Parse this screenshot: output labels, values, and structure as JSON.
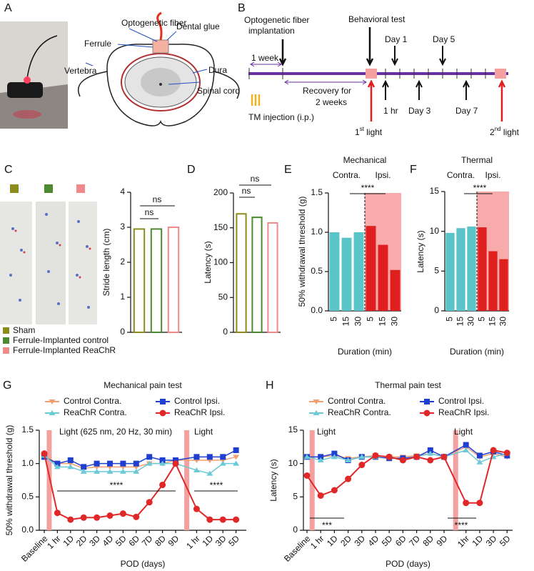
{
  "panel_labels": [
    "A",
    "B",
    "C",
    "D",
    "E",
    "F",
    "G",
    "H"
  ],
  "diagram": {
    "labels": [
      "Optogenetic fiber",
      "Ferrule",
      "Dental glue",
      "Vertebra",
      "Dura",
      "Spinal cord"
    ]
  },
  "timeline": {
    "implantation": [
      "Optogenetic fiber",
      "implantation"
    ],
    "behavioral_test": "Behavioral test",
    "week": "1 week",
    "recovery": [
      "Recovery for",
      "2 weeks"
    ],
    "injection": "TM injection (i.p.)",
    "days_above": [
      "Day 1",
      "Day 5"
    ],
    "days_below": [
      "1 hr",
      "Day 3",
      "Day 7"
    ],
    "first_light": [
      "1",
      "st",
      " light"
    ],
    "second_light": [
      "2",
      "nd",
      " light"
    ]
  },
  "chart_data": [
    {
      "type": "bar",
      "y_label": "Stride length (cm)",
      "categories": [
        "Sham",
        "Ferrule-Implanted control",
        "Ferrule-Implanted ReaChR"
      ],
      "values": [
        2.95,
        2.95,
        3.0
      ],
      "colors": [
        "#8c8c1c",
        "#4b8a2e",
        "#f08a8a"
      ],
      "ylim": [
        0,
        4
      ],
      "yticks": [
        0,
        1,
        2,
        3,
        4
      ],
      "annotations": [
        "ns",
        "ns"
      ]
    },
    {
      "type": "bar",
      "y_label": "Latency (s)",
      "values": [
        170,
        165,
        157
      ],
      "colors": [
        "#8c8c1c",
        "#4b8a2e",
        "#f08a8a"
      ],
      "ylim": [
        0,
        200
      ],
      "yticks": [
        0,
        50,
        100,
        150,
        200
      ],
      "annotations": [
        "ns",
        "ns"
      ]
    },
    {
      "type": "bar",
      "title": "Mechanical",
      "groups": [
        "Contra.",
        "Ipsi."
      ],
      "y_label": "50% withdrawal threshold (g)",
      "x_label": "Duration (min)",
      "categories": [
        "5",
        "15",
        "30",
        "5",
        "15",
        "30"
      ],
      "values": [
        1.0,
        0.93,
        1.0,
        1.08,
        0.84,
        0.52
      ],
      "colors": [
        "#5bc4c9",
        "#5bc4c9",
        "#5bc4c9",
        "#e0201f",
        "#e0201f",
        "#e0201f"
      ],
      "ylim": [
        0,
        1.5
      ],
      "yticks": [
        {
          "value": 0,
          "label": "0.0"
        },
        0.5,
        {
          "value": 1,
          "label": "1.0"
        },
        1.5
      ],
      "annotations": [
        "****"
      ]
    },
    {
      "type": "bar",
      "title": "Thermal",
      "groups": [
        "Contra.",
        "Ipsi."
      ],
      "y_label": "Latency (s)",
      "x_label": "Duration (min)",
      "categories": [
        "5",
        "15",
        "30",
        "5",
        "15",
        "30"
      ],
      "values": [
        9.8,
        10.4,
        10.6,
        10.5,
        7.5,
        6.5
      ],
      "colors": [
        "#5bc4c9",
        "#5bc4c9",
        "#5bc4c9",
        "#e0201f",
        "#e0201f",
        "#e0201f"
      ],
      "ylim": [
        0,
        15
      ],
      "yticks": [
        0,
        5,
        10,
        15
      ],
      "annotations": [
        "****"
      ]
    },
    {
      "type": "line",
      "title": "Mechanical pain test",
      "y_label": "50% withdrawal threshold (g)",
      "x_label": "POD (days)",
      "categories": [
        "Baseline",
        "1 hr",
        "1D",
        "2D",
        "3D",
        "4D",
        "5D",
        "6D",
        "7D",
        "8D",
        "9D",
        "1 hr",
        "1D",
        "3D",
        "5D"
      ],
      "series": [
        {
          "name": "Control Contra.",
          "color": "#f0a070",
          "values": [
            1.13,
            1.0,
            1.0,
            0.93,
            0.95,
            0.95,
            0.95,
            0.95,
            1.0,
            1.0,
            1.05,
            1.05,
            1.05,
            1.05,
            1.1
          ]
        },
        {
          "name": "Control Ipsi.",
          "color": "#1f3fd0",
          "values": [
            1.1,
            1.0,
            1.05,
            0.95,
            1.0,
            1.0,
            1.0,
            1.0,
            1.1,
            1.05,
            1.05,
            1.1,
            1.1,
            1.1,
            1.2
          ]
        },
        {
          "name": "ReaChR Contra.",
          "color": "#6cc9d6",
          "values": [
            1.12,
            0.95,
            0.95,
            0.88,
            0.88,
            0.88,
            0.88,
            0.88,
            1.0,
            1.0,
            1.0,
            0.9,
            0.85,
            1.0,
            1.0
          ]
        },
        {
          "name": "ReaChR Ipsi.",
          "color": "#e02828",
          "values": [
            1.15,
            0.26,
            0.16,
            0.19,
            0.19,
            0.22,
            0.25,
            0.2,
            0.42,
            0.68,
            1.0,
            0.32,
            0.16,
            0.16,
            0.16
          ]
        }
      ],
      "ylim": [
        0,
        1.5
      ],
      "yticks": [
        {
          "value": 0,
          "label": "0.0"
        },
        0.5,
        {
          "value": 1,
          "label": "1.0"
        },
        1.5
      ],
      "annotations": [
        "Light (625 nm, 20 Hz, 30 min)",
        "Light",
        "****",
        "****"
      ]
    },
    {
      "type": "line",
      "title": "Thermal pain test",
      "y_label": "Latency (s)",
      "x_label": "POD (days)",
      "categories": [
        "Baseline",
        "1 hr",
        "1D",
        "2D",
        "3D",
        "4D",
        "5D",
        "6D",
        "7D",
        "8D",
        "9D",
        "1hr",
        "1D",
        "3D",
        "5D"
      ],
      "series": [
        {
          "name": "Control Contra.",
          "color": "#f0a070",
          "values": [
            11,
            11,
            11.2,
            10.8,
            11,
            11.2,
            11,
            11,
            11.2,
            11.5,
            11,
            12.5,
            11,
            11.5,
            11
          ]
        },
        {
          "name": "Control Ipsi.",
          "color": "#1f3fd0",
          "values": [
            11,
            11,
            11.5,
            10.5,
            11,
            11,
            10.8,
            10.8,
            11,
            12,
            11,
            12.8,
            11.2,
            11.8,
            11.2
          ]
        },
        {
          "name": "ReaChR Contra.",
          "color": "#6cc9d6",
          "values": [
            11,
            10.5,
            11,
            10.5,
            11,
            11,
            11,
            10.5,
            11,
            11.5,
            11,
            12,
            10.2,
            11,
            11.5
          ]
        },
        {
          "name": "ReaChR Ipsi.",
          "color": "#e02828",
          "values": [
            8.2,
            5.2,
            6.0,
            7.7,
            9.8,
            11.2,
            11.0,
            10.5,
            11.0,
            10.5,
            11.0,
            4.1,
            4.1,
            12.0,
            11.6
          ]
        }
      ],
      "ylim": [
        0,
        15
      ],
      "yticks": [
        0,
        5,
        10,
        15
      ],
      "annotations": [
        "Light",
        "Light",
        "***",
        "****"
      ]
    }
  ]
}
